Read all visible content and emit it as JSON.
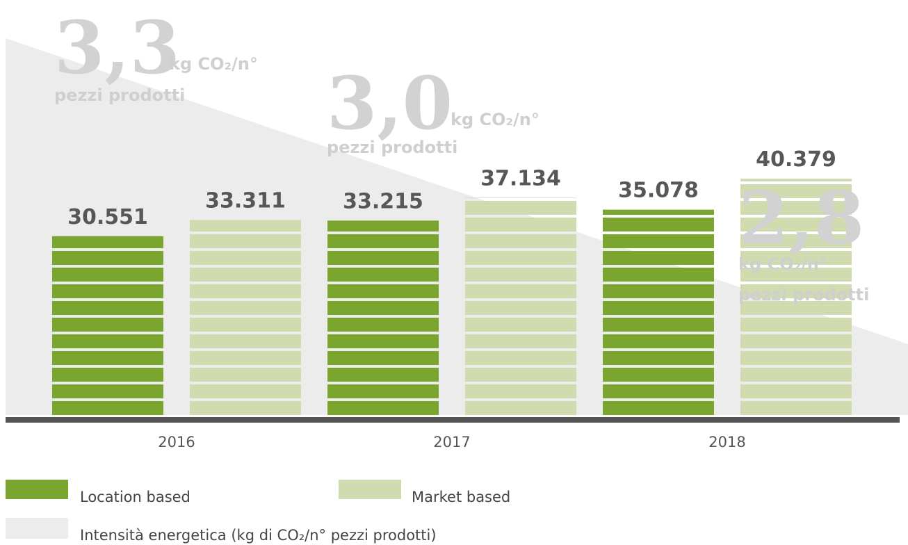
{
  "chart_data": {
    "type": "bar",
    "categories": [
      "2016",
      "2017",
      "2018"
    ],
    "series": [
      {
        "name": "Location based",
        "color": "#7aa52e",
        "values": [
          30551,
          33215,
          35078
        ],
        "value_labels": [
          "30.551",
          "33.215",
          "35.078"
        ]
      },
      {
        "name": "Market based",
        "color": "#d1dbb0",
        "values": [
          33311,
          37134,
          40379
        ],
        "value_labels": [
          "33.311",
          "37.134",
          "40.379"
        ]
      }
    ],
    "intensity": {
      "name": "Intensità energetica (kg di CO₂/n° pezzi prodotti)",
      "color": "#ececec",
      "values": [
        3.3,
        3.0,
        2.8
      ],
      "value_labels": [
        "3,3",
        "3,0",
        "2,8"
      ],
      "unit": "kg CO₂/n°",
      "unit_2": "pezzi prodotti"
    }
  }
}
